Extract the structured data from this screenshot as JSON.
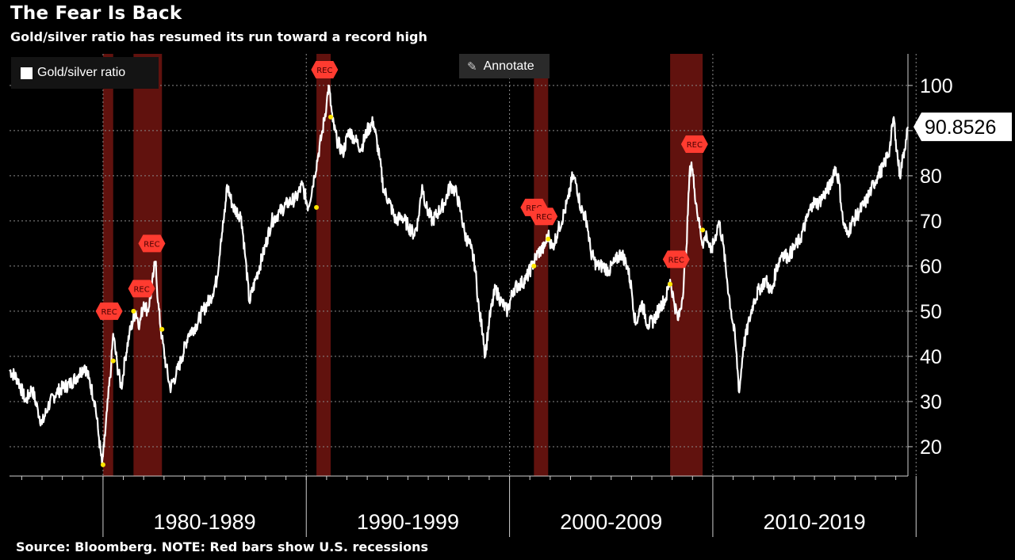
{
  "header": {
    "title": "The Fear Is Back",
    "subtitle": "Gold/silver ratio has resumed its run toward a record high"
  },
  "footer": {
    "source": "Source: Bloomberg. NOTE: Red bars show U.S. recessions"
  },
  "toolbar": {
    "annotate_label": "Annotate",
    "annotate_icon": "pencil-icon"
  },
  "colors": {
    "background": "#000000",
    "line": "#ffffff",
    "recession": "#6b1410",
    "rec_badge": "#ff3b30",
    "marker": "#ffe600"
  },
  "chart_data": {
    "type": "line",
    "title": "The Fear Is Back",
    "subtitle": "Gold/silver ratio has resumed its run toward a record high",
    "xlim": [
      1975.4,
      2019.6
    ],
    "ylim": [
      13.5,
      107
    ],
    "yticks": [
      20,
      30,
      40,
      50,
      60,
      70,
      80,
      90,
      100
    ],
    "grid": true,
    "legend_position": "top-left",
    "x_boundaries": [
      1980,
      1990,
      2000,
      2010,
      2020
    ],
    "x_groups": [
      {
        "label": "1980-1989",
        "from": 1980,
        "to": 1990
      },
      {
        "label": "1990-1999",
        "from": 1990,
        "to": 2000
      },
      {
        "label": "2000-2009",
        "from": 2000,
        "to": 2010
      },
      {
        "label": "2010-2019",
        "from": 2010,
        "to": 2020
      }
    ],
    "last_value": "90.8526",
    "recessions": [
      [
        1980.0,
        1980.5
      ],
      [
        1981.5,
        1982.9
      ],
      [
        1990.5,
        1991.2
      ],
      [
        2001.2,
        2001.9
      ],
      [
        2007.9,
        2009.5
      ]
    ],
    "rec_markers": [
      {
        "label": "REC",
        "x": 1980.3,
        "y": 50
      },
      {
        "label": "REC",
        "x": 1981.9,
        "y": 55
      },
      {
        "label": "REC",
        "x": 1982.4,
        "y": 65
      },
      {
        "label": "REC",
        "x": 1990.9,
        "y": 103.5
      },
      {
        "label": "REC",
        "x": 2001.2,
        "y": 73
      },
      {
        "label": "REC",
        "x": 2001.7,
        "y": 71
      },
      {
        "label": "REC",
        "x": 2008.2,
        "y": 61.5
      },
      {
        "label": "REC",
        "x": 2009.1,
        "y": 87
      }
    ],
    "event_points": [
      {
        "x": 1980.0,
        "y": 16
      },
      {
        "x": 1980.5,
        "y": 39
      },
      {
        "x": 1981.5,
        "y": 50
      },
      {
        "x": 1982.9,
        "y": 46
      },
      {
        "x": 1990.5,
        "y": 73
      },
      {
        "x": 1991.2,
        "y": 93
      },
      {
        "x": 2001.2,
        "y": 60
      },
      {
        "x": 2001.9,
        "y": 66
      },
      {
        "x": 2007.9,
        "y": 56
      },
      {
        "x": 2009.5,
        "y": 68
      }
    ],
    "series": [
      {
        "name": "Gold/silver ratio",
        "points": [
          [
            1975.4,
            37
          ],
          [
            1975.8,
            35
          ],
          [
            1976.2,
            30
          ],
          [
            1976.5,
            33
          ],
          [
            1976.8,
            28
          ],
          [
            1977.0,
            25
          ],
          [
            1977.3,
            29
          ],
          [
            1977.7,
            32
          ],
          [
            1978.0,
            33
          ],
          [
            1978.4,
            34
          ],
          [
            1978.8,
            36
          ],
          [
            1979.1,
            38
          ],
          [
            1979.3,
            35
          ],
          [
            1979.6,
            30
          ],
          [
            1979.8,
            22
          ],
          [
            1979.95,
            16
          ],
          [
            1980.05,
            20
          ],
          [
            1980.2,
            28
          ],
          [
            1980.4,
            38
          ],
          [
            1980.5,
            45
          ],
          [
            1980.7,
            38
          ],
          [
            1980.9,
            33
          ],
          [
            1981.1,
            40
          ],
          [
            1981.3,
            45
          ],
          [
            1981.6,
            50
          ],
          [
            1981.8,
            47
          ],
          [
            1982.0,
            52
          ],
          [
            1982.2,
            50
          ],
          [
            1982.4,
            55
          ],
          [
            1982.5,
            59
          ],
          [
            1982.6,
            61
          ],
          [
            1982.7,
            52
          ],
          [
            1982.9,
            44
          ],
          [
            1983.1,
            38
          ],
          [
            1983.3,
            33
          ],
          [
            1983.6,
            36
          ],
          [
            1983.9,
            40
          ],
          [
            1984.2,
            45
          ],
          [
            1984.6,
            47
          ],
          [
            1984.9,
            50
          ],
          [
            1985.3,
            53
          ],
          [
            1985.6,
            57
          ],
          [
            1985.8,
            66
          ],
          [
            1986.0,
            72
          ],
          [
            1986.1,
            78
          ],
          [
            1986.4,
            73
          ],
          [
            1986.8,
            71
          ],
          [
            1987.0,
            62
          ],
          [
            1987.2,
            52
          ],
          [
            1987.5,
            57
          ],
          [
            1987.9,
            63
          ],
          [
            1988.3,
            70
          ],
          [
            1988.7,
            72
          ],
          [
            1989.1,
            74
          ],
          [
            1989.5,
            75
          ],
          [
            1989.8,
            78
          ],
          [
            1990.1,
            73
          ],
          [
            1990.4,
            80
          ],
          [
            1990.6,
            85
          ],
          [
            1990.8,
            90
          ],
          [
            1991.0,
            96
          ],
          [
            1991.1,
            100
          ],
          [
            1991.3,
            92
          ],
          [
            1991.5,
            88
          ],
          [
            1991.8,
            85
          ],
          [
            1992.1,
            90
          ],
          [
            1992.4,
            88
          ],
          [
            1992.7,
            86
          ],
          [
            1993.0,
            90
          ],
          [
            1993.3,
            92
          ],
          [
            1993.6,
            84
          ],
          [
            1993.8,
            77
          ],
          [
            1994.1,
            74
          ],
          [
            1994.4,
            70
          ],
          [
            1994.7,
            71
          ],
          [
            1995.0,
            69
          ],
          [
            1995.3,
            67
          ],
          [
            1995.5,
            70
          ],
          [
            1995.7,
            78
          ],
          [
            1995.9,
            73
          ],
          [
            1996.2,
            70
          ],
          [
            1996.5,
            72
          ],
          [
            1996.8,
            74
          ],
          [
            1997.1,
            78
          ],
          [
            1997.4,
            76
          ],
          [
            1997.6,
            72
          ],
          [
            1997.8,
            67
          ],
          [
            1998.1,
            64
          ],
          [
            1998.3,
            60
          ],
          [
            1998.5,
            50
          ],
          [
            1998.7,
            45
          ],
          [
            1998.8,
            40
          ],
          [
            1999.0,
            48
          ],
          [
            1999.3,
            55
          ],
          [
            1999.6,
            52
          ],
          [
            1999.9,
            50
          ],
          [
            2000.2,
            55
          ],
          [
            2000.5,
            56
          ],
          [
            2000.8,
            57
          ],
          [
            2001.1,
            60
          ],
          [
            2001.4,
            63
          ],
          [
            2001.7,
            64
          ],
          [
            2001.9,
            67
          ],
          [
            2002.1,
            64
          ],
          [
            2002.4,
            68
          ],
          [
            2002.7,
            72
          ],
          [
            2002.9,
            75
          ],
          [
            2003.1,
            80
          ],
          [
            2003.3,
            78
          ],
          [
            2003.5,
            73
          ],
          [
            2003.8,
            70
          ],
          [
            2004.0,
            63
          ],
          [
            2004.3,
            60
          ],
          [
            2004.6,
            60
          ],
          [
            2004.9,
            59
          ],
          [
            2005.2,
            61
          ],
          [
            2005.5,
            63
          ],
          [
            2005.8,
            60
          ],
          [
            2006.0,
            55
          ],
          [
            2006.2,
            47
          ],
          [
            2006.5,
            52
          ],
          [
            2006.8,
            47
          ],
          [
            2007.1,
            48
          ],
          [
            2007.4,
            51
          ],
          [
            2007.7,
            53
          ],
          [
            2007.9,
            57
          ],
          [
            2008.1,
            52
          ],
          [
            2008.3,
            48
          ],
          [
            2008.5,
            53
          ],
          [
            2008.7,
            64
          ],
          [
            2008.85,
            80
          ],
          [
            2008.95,
            83
          ],
          [
            2009.1,
            77
          ],
          [
            2009.3,
            70
          ],
          [
            2009.5,
            65
          ],
          [
            2009.7,
            67
          ],
          [
            2009.9,
            63
          ],
          [
            2010.1,
            66
          ],
          [
            2010.3,
            70
          ],
          [
            2010.5,
            65
          ],
          [
            2010.7,
            57
          ],
          [
            2010.9,
            50
          ],
          [
            2011.1,
            44
          ],
          [
            2011.3,
            32
          ],
          [
            2011.5,
            42
          ],
          [
            2011.8,
            48
          ],
          [
            2012.0,
            52
          ],
          [
            2012.3,
            55
          ],
          [
            2012.6,
            57
          ],
          [
            2012.9,
            54
          ],
          [
            2013.1,
            59
          ],
          [
            2013.4,
            63
          ],
          [
            2013.7,
            62
          ],
          [
            2014.0,
            64
          ],
          [
            2014.3,
            66
          ],
          [
            2014.6,
            70
          ],
          [
            2014.9,
            74
          ],
          [
            2015.2,
            74
          ],
          [
            2015.5,
            76
          ],
          [
            2015.8,
            78
          ],
          [
            2016.0,
            82
          ],
          [
            2016.2,
            79
          ],
          [
            2016.4,
            70
          ],
          [
            2016.6,
            67
          ],
          [
            2016.9,
            70
          ],
          [
            2017.2,
            72
          ],
          [
            2017.5,
            74
          ],
          [
            2017.8,
            77
          ],
          [
            2018.1,
            80
          ],
          [
            2018.4,
            82
          ],
          [
            2018.7,
            86
          ],
          [
            2018.9,
            93
          ],
          [
            2019.0,
            88
          ],
          [
            2019.2,
            80
          ],
          [
            2019.35,
            84
          ],
          [
            2019.5,
            88
          ],
          [
            2019.6,
            90.85
          ]
        ]
      }
    ]
  }
}
